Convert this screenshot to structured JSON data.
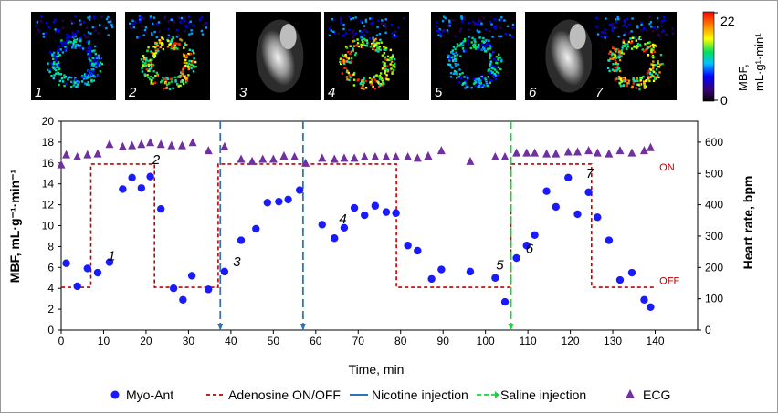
{
  "figure": {
    "panel_labels": [
      "1",
      "2",
      "3",
      "4",
      "5",
      "6",
      "7"
    ],
    "panel_kinds": [
      "mbf-map",
      "mbf-map",
      "mri",
      "mbf-map",
      "mbf-map",
      "mri",
      "mbf-map"
    ],
    "colorbar": {
      "max_label": "22",
      "min_label": "0",
      "title_line1": "MBF,",
      "title_line2": "mL·g¹·min¹"
    }
  },
  "chart_data": {
    "type": "scatter",
    "xlabel": "Time, min",
    "ylabel_left": "MBF, mL·g⁻¹·min⁻¹",
    "ylabel_right": "Heart rate, bpm",
    "xlim": [
      0,
      150
    ],
    "ylim_left": [
      0,
      20
    ],
    "ylim_right": [
      0,
      666.67
    ],
    "x_ticks": [
      "0",
      "10",
      "20",
      "30",
      "40",
      "50",
      "60",
      "70",
      "80",
      "90",
      "100",
      "110",
      "120",
      "130",
      "140"
    ],
    "y_left_ticks": [
      "0",
      "2",
      "4",
      "6",
      "8",
      "10",
      "12",
      "14",
      "16",
      "18",
      "20"
    ],
    "y_right_ticks": [
      "0",
      "100",
      "200",
      "300",
      "400",
      "500",
      "600"
    ],
    "series": [
      {
        "name": "Myo-Ant",
        "color": "#1a1aff",
        "marker": "circle",
        "points": [
          [
            1.2,
            6.4
          ],
          [
            3.8,
            4.2
          ],
          [
            6.2,
            5.9
          ],
          [
            8.6,
            5.5
          ],
          [
            11.4,
            6.5
          ],
          [
            14.5,
            13.5
          ],
          [
            16.7,
            14.6
          ],
          [
            18.9,
            13.6
          ],
          [
            21.0,
            14.7
          ],
          [
            23.5,
            11.6
          ],
          [
            26.5,
            4.0
          ],
          [
            28.7,
            2.9
          ],
          [
            30.8,
            5.2
          ],
          [
            34.7,
            3.9
          ],
          [
            38.5,
            5.6
          ],
          [
            42.4,
            8.6
          ],
          [
            45.9,
            9.7
          ],
          [
            48.6,
            12.2
          ],
          [
            51.3,
            12.3
          ],
          [
            53.5,
            12.5
          ],
          [
            56.2,
            13.4
          ],
          [
            61.5,
            10.1
          ],
          [
            64.4,
            8.8
          ],
          [
            66.7,
            9.8
          ],
          [
            69.1,
            11.7
          ],
          [
            71.5,
            11.0
          ],
          [
            74.0,
            11.9
          ],
          [
            76.6,
            11.3
          ],
          [
            78.9,
            11.2
          ],
          [
            81.7,
            8.1
          ],
          [
            84.0,
            7.6
          ],
          [
            87.3,
            4.9
          ],
          [
            89.6,
            5.8
          ],
          [
            96.4,
            5.6
          ],
          [
            102.3,
            5.0
          ],
          [
            104.6,
            2.7
          ],
          [
            107.3,
            6.9
          ],
          [
            109.7,
            8.1
          ],
          [
            111.6,
            9.1
          ],
          [
            114.4,
            13.3
          ],
          [
            116.6,
            11.8
          ],
          [
            119.5,
            14.6
          ],
          [
            121.7,
            11.1
          ],
          [
            124.3,
            13.2
          ],
          [
            126.4,
            10.8
          ],
          [
            129.1,
            8.6
          ],
          [
            131.7,
            4.8
          ],
          [
            134.5,
            5.5
          ],
          [
            137.4,
            2.9
          ],
          [
            138.9,
            2.2
          ]
        ]
      },
      {
        "name": "Adenosine ON/OFF",
        "color": "#c00000",
        "style": "dashed",
        "points": [
          [
            0,
            4.1
          ],
          [
            7,
            4.1
          ],
          [
            7,
            15.9
          ],
          [
            22,
            15.9
          ],
          [
            22,
            4.1
          ],
          [
            37,
            4.1
          ],
          [
            37,
            15.9
          ],
          [
            79,
            15.9
          ],
          [
            79,
            4.1
          ],
          [
            106,
            4.1
          ],
          [
            106,
            15.9
          ],
          [
            125,
            15.9
          ],
          [
            125,
            4.1
          ],
          [
            140,
            4.1
          ]
        ]
      },
      {
        "name": "Nicotine injection",
        "color": "#2e75b6",
        "style": "dashed-arrow",
        "x": [
          37.5,
          57.0
        ]
      },
      {
        "name": "Saline injection",
        "color": "#22cc44",
        "style": "dashed-arrow",
        "x": [
          106.0
        ]
      },
      {
        "name": "ECG",
        "color": "#7030a0",
        "marker": "triangle",
        "axis": "right",
        "points": [
          [
            0,
            528
          ],
          [
            1.2,
            560
          ],
          [
            3.8,
            553
          ],
          [
            6.2,
            560
          ],
          [
            8.6,
            563
          ],
          [
            11.4,
            593
          ],
          [
            14.5,
            586
          ],
          [
            16.7,
            589
          ],
          [
            18.9,
            593
          ],
          [
            21.0,
            599
          ],
          [
            23.5,
            593
          ],
          [
            26.0,
            589
          ],
          [
            28.5,
            589
          ],
          [
            31.0,
            599
          ],
          [
            34.7,
            573
          ],
          [
            38.5,
            586
          ],
          [
            42.4,
            546
          ],
          [
            45.0,
            539
          ],
          [
            47.5,
            546
          ],
          [
            50.0,
            546
          ],
          [
            52.5,
            556
          ],
          [
            55.0,
            553
          ],
          [
            57.6,
            533
          ],
          [
            61.5,
            549
          ],
          [
            64.4,
            546
          ],
          [
            66.7,
            549
          ],
          [
            69.1,
            549
          ],
          [
            71.5,
            553
          ],
          [
            74.0,
            553
          ],
          [
            76.6,
            553
          ],
          [
            78.9,
            553
          ],
          [
            81.7,
            553
          ],
          [
            84.0,
            549
          ],
          [
            86.5,
            556
          ],
          [
            89.6,
            573
          ],
          [
            96.4,
            539
          ],
          [
            102.3,
            553
          ],
          [
            104.6,
            553
          ],
          [
            107.3,
            566
          ],
          [
            109.7,
            566
          ],
          [
            111.6,
            566
          ],
          [
            114.4,
            563
          ],
          [
            116.6,
            563
          ],
          [
            119.5,
            569
          ],
          [
            121.7,
            569
          ],
          [
            124.3,
            573
          ],
          [
            126.4,
            566
          ],
          [
            129.1,
            563
          ],
          [
            131.7,
            573
          ],
          [
            134.5,
            566
          ],
          [
            137.4,
            573
          ],
          [
            138.9,
            583
          ]
        ]
      }
    ],
    "annotations": [
      {
        "text": "1",
        "x": 11.0,
        "y": 6.7
      },
      {
        "text": "2",
        "x": 21.5,
        "y": 15.9
      },
      {
        "text": "3",
        "x": 40.5,
        "y": 6.1
      },
      {
        "text": "4",
        "x": 65.5,
        "y": 10.2
      },
      {
        "text": "5",
        "x": 102.5,
        "y": 5.8
      },
      {
        "text": "6",
        "x": 109.5,
        "y": 7.4
      },
      {
        "text": "7",
        "x": 123.7,
        "y": 14.6
      },
      {
        "text": "ON",
        "x": 141.0,
        "y": 15.3,
        "color": "#c00000"
      },
      {
        "text": "OFF",
        "x": 141.0,
        "y": 4.4,
        "color": "#c00000"
      }
    ],
    "legend": [
      "Myo-Ant",
      "Adenosine ON/OFF",
      "Nicotine injection",
      "Saline injection",
      "ECG"
    ],
    "legend_placement": "bottom"
  }
}
